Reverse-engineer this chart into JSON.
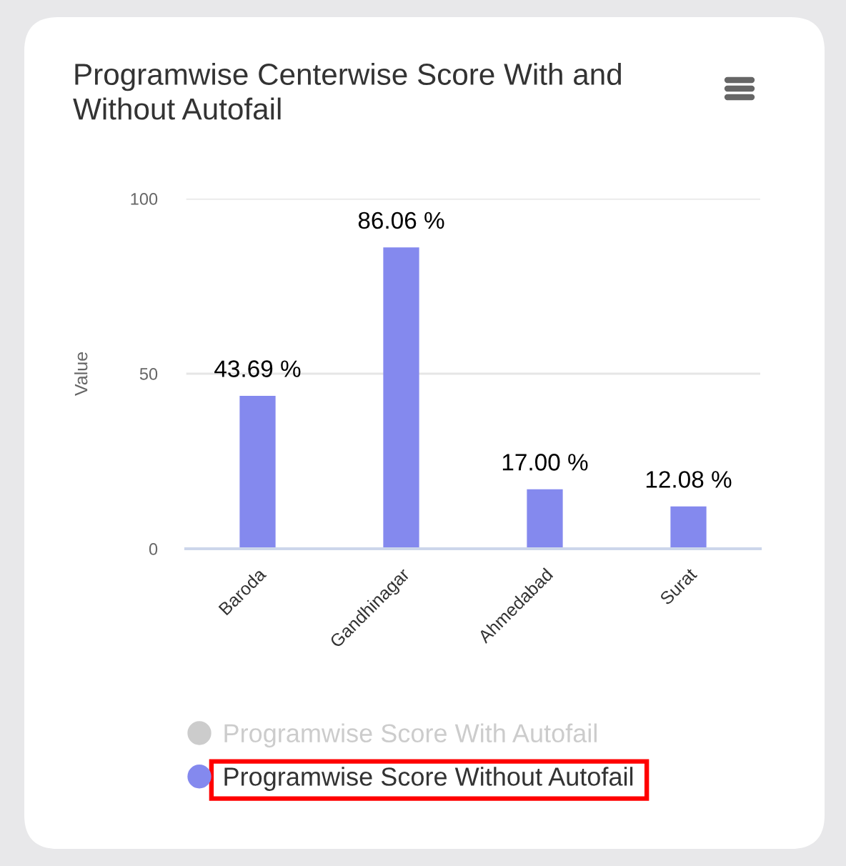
{
  "chart_data": {
    "type": "bar",
    "title": "Programwise Centerwise Score With and Without Autofail",
    "ylabel": "Value",
    "categories": [
      "Baroda",
      "Gandhinagar",
      "Ahmedabad",
      "Surat"
    ],
    "series": [
      {
        "name": "Programwise Score With Autofail",
        "color": "#cccccc",
        "values": [
          null,
          null,
          null,
          null
        ]
      },
      {
        "name": "Programwise Score Without Autofail",
        "color": "#8489ee",
        "values": [
          43.69,
          86.06,
          17.0,
          12.08
        ],
        "value_labels": [
          "43.69 %",
          "86.06 %",
          "17.00 %",
          "12.08 %"
        ]
      }
    ],
    "ylim": [
      0,
      100
    ],
    "yticks": [
      0,
      50,
      100
    ],
    "grid": "y",
    "legend": "bottom"
  }
}
